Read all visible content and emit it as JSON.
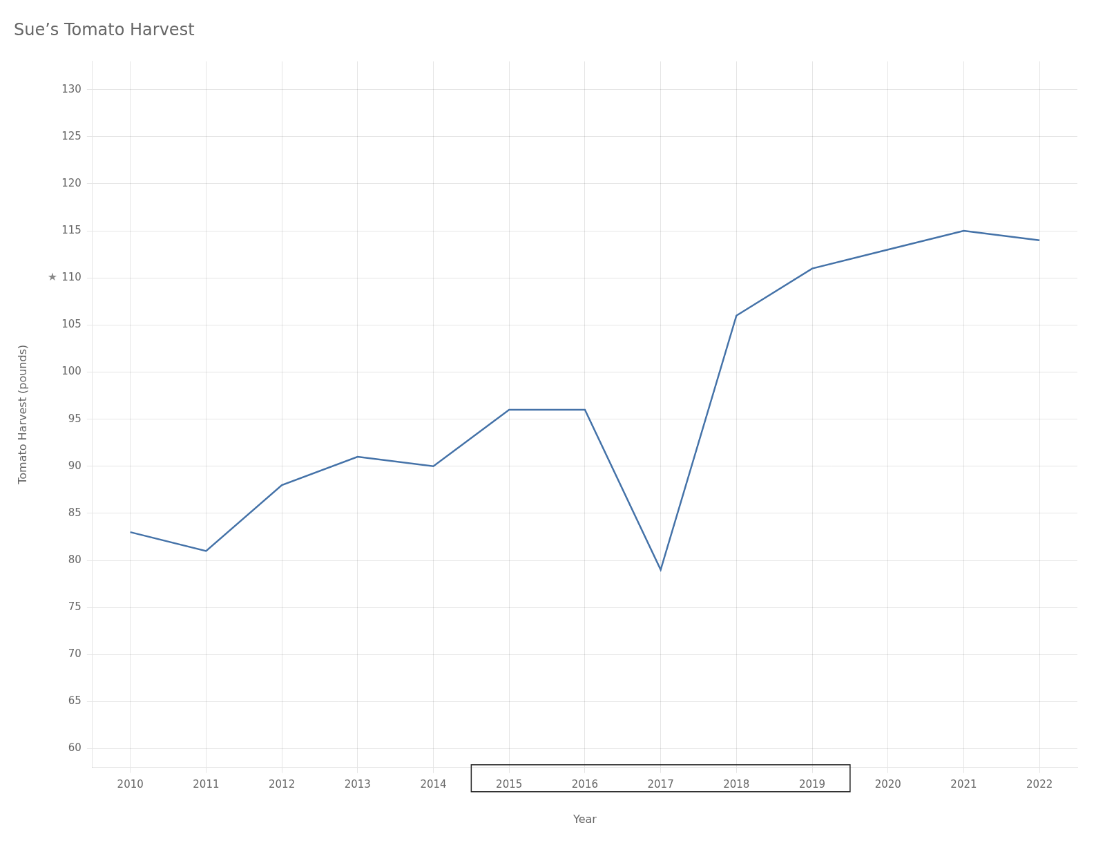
{
  "chart_data": {
    "type": "line",
    "title": "Sue’s Tomato Harvest",
    "xlabel": "Year",
    "ylabel": "Tomato Harvest (pounds)",
    "x": [
      2010,
      2011,
      2012,
      2013,
      2014,
      2015,
      2016,
      2017,
      2018,
      2019,
      2020,
      2021,
      2022
    ],
    "values": [
      83,
      81,
      88,
      91,
      90,
      96,
      96,
      79,
      106,
      111,
      113,
      115,
      114
    ],
    "color": "#4472a8",
    "xlim": [
      2009.5,
      2022.5
    ],
    "xticks": [
      2010,
      2011,
      2012,
      2013,
      2014,
      2015,
      2016,
      2017,
      2018,
      2019,
      2020,
      2021,
      2022
    ],
    "ylim": [
      58,
      133
    ],
    "yticks": [
      60,
      65,
      70,
      75,
      80,
      85,
      90,
      95,
      100,
      105,
      110,
      115,
      120,
      125,
      130
    ],
    "grid": true,
    "annotations": [
      {
        "text": "★",
        "y": 110
      }
    ],
    "highlight": [
      2014.5,
      2019.5
    ]
  }
}
